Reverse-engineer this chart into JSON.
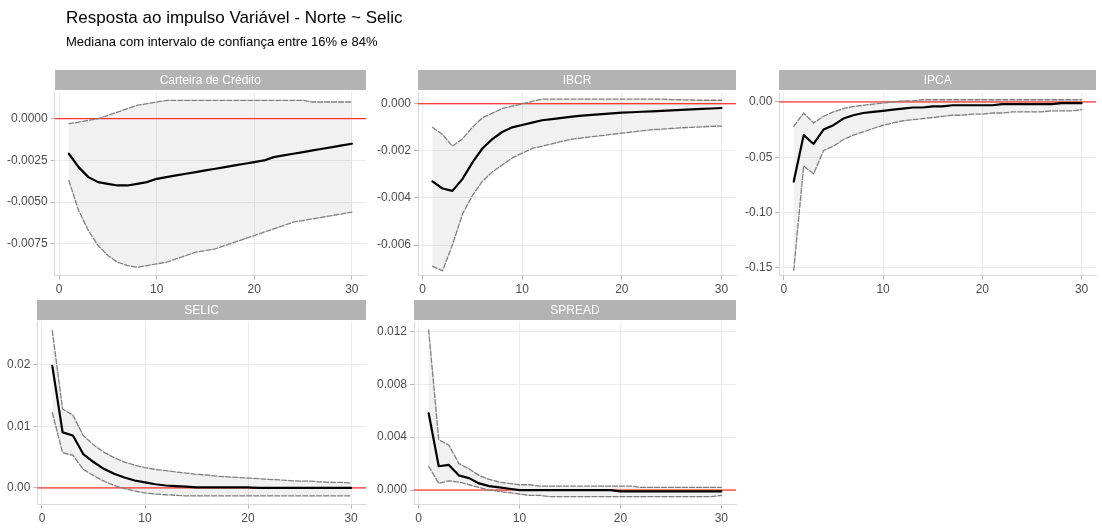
{
  "chart_data": [
    {
      "type": "line",
      "title": "Carteira de Crédito",
      "annotations": [
        "Resposta ao impulso Variável - Norte ~ Selic",
        "Mediana com intervalo de confiança entre 16% e 84%"
      ],
      "x": [
        1,
        2,
        3,
        4,
        5,
        6,
        7,
        8,
        9,
        10,
        11,
        12,
        13,
        14,
        15,
        16,
        17,
        18,
        19,
        20,
        21,
        22,
        23,
        24,
        25,
        26,
        27,
        28,
        29,
        30
      ],
      "xlim": [
        -0.45,
        31.45
      ],
      "xticks": [
        0,
        10,
        20,
        30
      ],
      "ylim": [
        -0.0094,
        0.0016
      ],
      "yticks": [
        {
          "value": -0.0075,
          "label": "-0.0075"
        },
        {
          "value": -0.005,
          "label": "-0.0050"
        },
        {
          "value": -0.0025,
          "label": "-0.0025"
        },
        {
          "value": 0,
          "label": "0.0000"
        }
      ],
      "grid": true,
      "ref_lines": [
        {
          "axis": "y",
          "value": 0,
          "color": "#ff0000"
        }
      ],
      "series": [
        {
          "color": "#000000",
          "line_style": "solid",
          "values": [
            -0.0021,
            -0.0029,
            -0.0035,
            -0.0038,
            -0.0039,
            -0.004,
            -0.004,
            -0.0039,
            -0.0038,
            -0.0036,
            -0.0035,
            -0.0034,
            -0.0033,
            -0.0032,
            -0.0031,
            -0.003,
            -0.0029,
            -0.0028,
            -0.0027,
            -0.0026,
            -0.0025,
            -0.0023,
            -0.0022,
            -0.0021,
            -0.002,
            -0.0019,
            -0.0018,
            -0.0017,
            -0.0016,
            -0.0015
          ],
          "upper": [
            -0.0003,
            -0.0002,
            -0.0001,
            0,
            0.0002,
            0.0004,
            0.0006,
            0.0008,
            0.0009,
            0.001,
            0.0011,
            0.0011,
            0.0011,
            0.0011,
            0.0011,
            0.0011,
            0.0011,
            0.0011,
            0.0011,
            0.0011,
            0.0011,
            0.0011,
            0.0011,
            0.0011,
            0.0011,
            0.001,
            0.001,
            0.001,
            0.001,
            0.001
          ],
          "lower": [
            -0.0037,
            -0.0055,
            -0.0067,
            -0.0076,
            -0.0082,
            -0.0086,
            -0.0088,
            -0.0089,
            -0.0088,
            -0.0087,
            -0.0086,
            -0.0084,
            -0.0082,
            -0.008,
            -0.0079,
            -0.0078,
            -0.0076,
            -0.0074,
            -0.0072,
            -0.007,
            -0.0068,
            -0.0066,
            -0.0064,
            -0.0062,
            -0.0061,
            -0.006,
            -0.0059,
            -0.0058,
            -0.0057,
            -0.0056
          ]
        },
        {
          "color": "#7f7f7f",
          "line_style": "dashed",
          "values": [
            -0.0003,
            -0.0002,
            -0.0001,
            0,
            0.0002,
            0.0004,
            0.0006,
            0.0008,
            0.0009,
            0.001,
            0.0011,
            0.0011,
            0.0011,
            0.0011,
            0.0011,
            0.0011,
            0.0011,
            0.0011,
            0.0011,
            0.0011,
            0.0011,
            0.0011,
            0.0011,
            0.0011,
            0.0011,
            0.001,
            0.001,
            0.001,
            0.001,
            0.001
          ]
        },
        {
          "color": "#7f7f7f",
          "line_style": "dashed",
          "values": [
            -0.0037,
            -0.0055,
            -0.0067,
            -0.0076,
            -0.0082,
            -0.0086,
            -0.0088,
            -0.0089,
            -0.0088,
            -0.0087,
            -0.0086,
            -0.0084,
            -0.0082,
            -0.008,
            -0.0079,
            -0.0078,
            -0.0076,
            -0.0074,
            -0.0072,
            -0.007,
            -0.0068,
            -0.0066,
            -0.0064,
            -0.0062,
            -0.0061,
            -0.006,
            -0.0059,
            -0.0058,
            -0.0057,
            -0.0056
          ]
        }
      ]
    },
    {
      "type": "line",
      "title": "IBCR",
      "x": [
        1,
        2,
        3,
        4,
        5,
        6,
        7,
        8,
        9,
        10,
        11,
        12,
        13,
        14,
        15,
        16,
        17,
        18,
        19,
        20,
        21,
        22,
        23,
        24,
        25,
        26,
        27,
        28,
        29,
        30
      ],
      "xlim": [
        -0.45,
        31.45
      ],
      "xticks": [
        0,
        10,
        20,
        30
      ],
      "ylim": [
        -0.0073,
        0.0005
      ],
      "yticks": [
        {
          "value": -0.006,
          "label": "-0.006"
        },
        {
          "value": -0.004,
          "label": "-0.004"
        },
        {
          "value": -0.002,
          "label": "-0.002"
        },
        {
          "value": 0,
          "label": "0.000"
        }
      ],
      "grid": true,
      "ref_lines": [
        {
          "axis": "y",
          "value": 0,
          "color": "#ff0000"
        }
      ],
      "series": [
        {
          "color": "#000000",
          "line_style": "solid",
          "values": [
            -0.0033,
            -0.0036,
            -0.0037,
            -0.0032,
            -0.0025,
            -0.0019,
            -0.0015,
            -0.0012,
            -0.001,
            -0.0009,
            -0.0008,
            -0.0007,
            -0.00065,
            -0.0006,
            -0.00055,
            -0.0005,
            -0.00047,
            -0.00044,
            -0.00041,
            -0.00038,
            -0.00036,
            -0.00034,
            -0.00032,
            -0.0003,
            -0.00028,
            -0.00026,
            -0.00024,
            -0.00022,
            -0.0002,
            -0.00018
          ],
          "upper": [
            -0.001,
            -0.0013,
            -0.0018,
            -0.0015,
            -0.001,
            -0.0006,
            -0.0004,
            -0.0002,
            -0.0001,
            0,
            0.0001,
            0.0002,
            0.0002,
            0.0002,
            0.0002,
            0.0002,
            0.0002,
            0.0002,
            0.0002,
            0.0002,
            0.0002,
            0.0002,
            0.0002,
            0.0002,
            0.00018,
            0.00017,
            0.00016,
            0.00015,
            0.00015,
            0.00015
          ],
          "lower": [
            -0.0069,
            -0.0071,
            -0.006,
            -0.0047,
            -0.0039,
            -0.0033,
            -0.0029,
            -0.0026,
            -0.0023,
            -0.0021,
            -0.0019,
            -0.0018,
            -0.0017,
            -0.0016,
            -0.0015,
            -0.00145,
            -0.0014,
            -0.00135,
            -0.0013,
            -0.00125,
            -0.0012,
            -0.00115,
            -0.0011,
            -0.00108,
            -0.00105,
            -0.00102,
            -0.001,
            -0.00098,
            -0.00096,
            -0.00095
          ]
        },
        {
          "color": "#7f7f7f",
          "line_style": "dashed",
          "values": [
            -0.001,
            -0.0013,
            -0.0018,
            -0.0015,
            -0.001,
            -0.0006,
            -0.0004,
            -0.0002,
            -0.0001,
            0,
            0.0001,
            0.0002,
            0.0002,
            0.0002,
            0.0002,
            0.0002,
            0.0002,
            0.0002,
            0.0002,
            0.0002,
            0.0002,
            0.0002,
            0.0002,
            0.0002,
            0.00018,
            0.00017,
            0.00016,
            0.00015,
            0.00015,
            0.00015
          ]
        },
        {
          "color": "#7f7f7f",
          "line_style": "dashed",
          "values": [
            -0.0069,
            -0.0071,
            -0.006,
            -0.0047,
            -0.0039,
            -0.0033,
            -0.0029,
            -0.0026,
            -0.0023,
            -0.0021,
            -0.0019,
            -0.0018,
            -0.0017,
            -0.0016,
            -0.0015,
            -0.00145,
            -0.0014,
            -0.00135,
            -0.0013,
            -0.00125,
            -0.0012,
            -0.00115,
            -0.0011,
            -0.00108,
            -0.00105,
            -0.00102,
            -0.001,
            -0.00098,
            -0.00096,
            -0.00095
          ]
        }
      ]
    },
    {
      "type": "line",
      "title": "IPCA",
      "x": [
        1,
        2,
        3,
        4,
        5,
        6,
        7,
        8,
        9,
        10,
        11,
        12,
        13,
        14,
        15,
        16,
        17,
        18,
        19,
        20,
        21,
        22,
        23,
        24,
        25,
        26,
        27,
        28,
        29,
        30
      ],
      "xlim": [
        -0.45,
        31.45
      ],
      "xticks": [
        0,
        10,
        20,
        30
      ],
      "ylim": [
        -0.157,
        0.009
      ],
      "yticks": [
        {
          "value": -0.15,
          "label": "-0.15"
        },
        {
          "value": -0.1,
          "label": "-0.10"
        },
        {
          "value": -0.05,
          "label": "-0.05"
        },
        {
          "value": 0,
          "label": "0.00"
        }
      ],
      "grid": true,
      "ref_lines": [
        {
          "axis": "y",
          "value": 0,
          "color": "#ff0000"
        }
      ],
      "series": [
        {
          "color": "#000000",
          "line_style": "solid",
          "values": [
            -0.072,
            -0.03,
            -0.038,
            -0.025,
            -0.021,
            -0.015,
            -0.012,
            -0.01,
            -0.009,
            -0.008,
            -0.007,
            -0.006,
            -0.005,
            -0.005,
            -0.004,
            -0.004,
            -0.003,
            -0.003,
            -0.003,
            -0.003,
            -0.003,
            -0.002,
            -0.002,
            -0.002,
            -0.002,
            -0.002,
            -0.002,
            -0.001,
            -0.001,
            -0.001
          ],
          "upper": [
            -0.022,
            -0.01,
            -0.019,
            -0.013,
            -0.009,
            -0.006,
            -0.004,
            -0.003,
            -0.002,
            -0.001,
            0,
            0.001,
            0.001,
            0.002,
            0.002,
            0.002,
            0.002,
            0.002,
            0.002,
            0.002,
            0.002,
            0.002,
            0.002,
            0.002,
            0.002,
            0.002,
            0.002,
            0.002,
            0.002,
            0.002
          ],
          "lower": [
            -0.152,
            -0.058,
            -0.065,
            -0.044,
            -0.04,
            -0.034,
            -0.03,
            -0.027,
            -0.024,
            -0.021,
            -0.019,
            -0.017,
            -0.016,
            -0.015,
            -0.014,
            -0.013,
            -0.012,
            -0.012,
            -0.011,
            -0.011,
            -0.01,
            -0.01,
            -0.009,
            -0.009,
            -0.009,
            -0.009,
            -0.008,
            -0.008,
            -0.008,
            -0.007
          ]
        },
        {
          "color": "#7f7f7f",
          "line_style": "dashed",
          "values": [
            -0.022,
            -0.01,
            -0.019,
            -0.013,
            -0.009,
            -0.006,
            -0.004,
            -0.003,
            -0.002,
            -0.001,
            0,
            0.001,
            0.001,
            0.002,
            0.002,
            0.002,
            0.002,
            0.002,
            0.002,
            0.002,
            0.002,
            0.002,
            0.002,
            0.002,
            0.002,
            0.002,
            0.002,
            0.002,
            0.002,
            0.002
          ]
        },
        {
          "color": "#7f7f7f",
          "line_style": "dashed",
          "values": [
            -0.152,
            -0.058,
            -0.065,
            -0.044,
            -0.04,
            -0.034,
            -0.03,
            -0.027,
            -0.024,
            -0.021,
            -0.019,
            -0.017,
            -0.016,
            -0.015,
            -0.014,
            -0.013,
            -0.012,
            -0.012,
            -0.011,
            -0.011,
            -0.01,
            -0.01,
            -0.009,
            -0.009,
            -0.009,
            -0.009,
            -0.008,
            -0.008,
            -0.008,
            -0.007
          ]
        }
      ]
    },
    {
      "type": "line",
      "title": "SELIC",
      "x": [
        1,
        2,
        3,
        4,
        5,
        6,
        7,
        8,
        9,
        10,
        11,
        12,
        13,
        14,
        15,
        16,
        17,
        18,
        19,
        20,
        21,
        22,
        23,
        24,
        25,
        26,
        27,
        28,
        29,
        30
      ],
      "xlim": [
        -0.45,
        31.45
      ],
      "xticks": [
        0,
        10,
        20,
        30
      ],
      "ylim": [
        -0.0027,
        0.0269
      ],
      "yticks": [
        {
          "value": 0,
          "label": "0.00"
        },
        {
          "value": 0.01,
          "label": "0.01"
        },
        {
          "value": 0.02,
          "label": "0.02"
        }
      ],
      "grid": true,
      "ref_lines": [
        {
          "axis": "y",
          "value": 0,
          "color": "#ff0000"
        }
      ],
      "series": [
        {
          "color": "#000000",
          "line_style": "solid",
          "values": [
            0.0198,
            0.009,
            0.0085,
            0.0055,
            0.0042,
            0.0031,
            0.0023,
            0.0017,
            0.0012,
            0.0009,
            0.0006,
            0.0004,
            0.0003,
            0.0002,
            0.0001,
            0.0001,
            0.0001,
            0.0001,
            0.0001,
            0.0001,
            0,
            0,
            0,
            0,
            0,
            0,
            0,
            0,
            0,
            0
          ],
          "upper": [
            0.0255,
            0.0128,
            0.0118,
            0.0085,
            0.007,
            0.0058,
            0.0049,
            0.0042,
            0.0037,
            0.0033,
            0.003,
            0.0028,
            0.0026,
            0.0024,
            0.0022,
            0.0021,
            0.0019,
            0.0018,
            0.0017,
            0.0016,
            0.0015,
            0.0014,
            0.0013,
            0.0012,
            0.0011,
            0.0011,
            0.001,
            0.0009,
            0.0009,
            0.0008
          ],
          "lower": [
            0.0122,
            0.0057,
            0.0053,
            0.003,
            0.002,
            0.0011,
            0.0004,
            -0.0001,
            -0.0005,
            -0.0008,
            -0.001,
            -0.0011,
            -0.0012,
            -0.0013,
            -0.0013,
            -0.0013,
            -0.0013,
            -0.0013,
            -0.0013,
            -0.0013,
            -0.0013,
            -0.0013,
            -0.0013,
            -0.0013,
            -0.0013,
            -0.0013,
            -0.0013,
            -0.0013,
            -0.0013,
            -0.0013
          ]
        },
        {
          "color": "#7f7f7f",
          "line_style": "dashed",
          "values": [
            0.0255,
            0.0128,
            0.0118,
            0.0085,
            0.007,
            0.0058,
            0.0049,
            0.0042,
            0.0037,
            0.0033,
            0.003,
            0.0028,
            0.0026,
            0.0024,
            0.0022,
            0.0021,
            0.0019,
            0.0018,
            0.0017,
            0.0016,
            0.0015,
            0.0014,
            0.0013,
            0.0012,
            0.0011,
            0.0011,
            0.001,
            0.0009,
            0.0009,
            0.0008
          ]
        },
        {
          "color": "#7f7f7f",
          "line_style": "dashed",
          "values": [
            0.0122,
            0.0057,
            0.0053,
            0.003,
            0.002,
            0.0011,
            0.0004,
            -0.0001,
            -0.0005,
            -0.0008,
            -0.001,
            -0.0011,
            -0.0012,
            -0.0013,
            -0.0013,
            -0.0013,
            -0.0013,
            -0.0013,
            -0.0013,
            -0.0013,
            -0.0013,
            -0.0013,
            -0.0013,
            -0.0013,
            -0.0013,
            -0.0013,
            -0.0013,
            -0.0013,
            -0.0013,
            -0.0013
          ]
        }
      ]
    },
    {
      "type": "line",
      "title": "SPREAD",
      "x": [
        1,
        2,
        3,
        4,
        5,
        6,
        7,
        8,
        9,
        10,
        11,
        12,
        13,
        14,
        15,
        16,
        17,
        18,
        19,
        20,
        21,
        22,
        23,
        24,
        25,
        26,
        27,
        28,
        29,
        30
      ],
      "xlim": [
        -0.45,
        31.45
      ],
      "xticks": [
        0,
        10,
        20,
        30
      ],
      "ylim": [
        -0.0011,
        0.0127
      ],
      "yticks": [
        {
          "value": 0,
          "label": "0.000"
        },
        {
          "value": 0.004,
          "label": "0.004"
        },
        {
          "value": 0.008,
          "label": "0.008"
        },
        {
          "value": 0.012,
          "label": "0.012"
        }
      ],
      "grid": true,
      "ref_lines": [
        {
          "axis": "y",
          "value": 0,
          "color": "#ff0000"
        }
      ],
      "series": [
        {
          "color": "#000000",
          "line_style": "solid",
          "values": [
            0.0058,
            0.0018,
            0.0019,
            0.0011,
            0.0009,
            0.0005,
            0.0003,
            0.0002,
            0.0001,
            0,
            0,
            0,
            0,
            0,
            0,
            0,
            0,
            0,
            0,
            -0.0001,
            -0.0001,
            -0.0001,
            -0.0001,
            -0.0001,
            -0.0001,
            -0.0001,
            -0.0001,
            -0.0001,
            -0.0001,
            -0.0001
          ],
          "upper": [
            0.0121,
            0.0038,
            0.0034,
            0.002,
            0.0016,
            0.0011,
            0.0008,
            0.0006,
            0.0005,
            0.0004,
            0.0004,
            0.0003,
            0.0003,
            0.0003,
            0.0003,
            0.0003,
            0.0003,
            0.0003,
            0.0003,
            0.0003,
            0.0003,
            0.0002,
            0.0002,
            0.0002,
            0.0002,
            0.0002,
            0.0002,
            0.0002,
            0.0002,
            0.0002
          ],
          "lower": [
            0.0018,
            0.0005,
            0.0007,
            0.0006,
            0.0004,
            0.0002,
            0,
            -0.0001,
            -0.0002,
            -0.0003,
            -0.0004,
            -0.0004,
            -0.0005,
            -0.0005,
            -0.0005,
            -0.0005,
            -0.0005,
            -0.0005,
            -0.0005,
            -0.0005,
            -0.0005,
            -0.0005,
            -0.0005,
            -0.0005,
            -0.0005,
            -0.0005,
            -0.0005,
            -0.0005,
            -0.0005,
            -0.0004
          ]
        },
        {
          "color": "#7f7f7f",
          "line_style": "dashed",
          "values": [
            0.0121,
            0.0038,
            0.0034,
            0.002,
            0.0016,
            0.0011,
            0.0008,
            0.0006,
            0.0005,
            0.0004,
            0.0004,
            0.0003,
            0.0003,
            0.0003,
            0.0003,
            0.0003,
            0.0003,
            0.0003,
            0.0003,
            0.0003,
            0.0003,
            0.0002,
            0.0002,
            0.0002,
            0.0002,
            0.0002,
            0.0002,
            0.0002,
            0.0002,
            0.0002
          ]
        },
        {
          "color": "#7f7f7f",
          "line_style": "dashed",
          "values": [
            0.0018,
            0.0005,
            0.0007,
            0.0006,
            0.0004,
            0.0002,
            0,
            -0.0001,
            -0.0002,
            -0.0003,
            -0.0004,
            -0.0004,
            -0.0005,
            -0.0005,
            -0.0005,
            -0.0005,
            -0.0005,
            -0.0005,
            -0.0005,
            -0.0005,
            -0.0005,
            -0.0005,
            -0.0005,
            -0.0005,
            -0.0005,
            -0.0005,
            -0.0005,
            -0.0005,
            -0.0005,
            -0.0004
          ]
        }
      ]
    }
  ]
}
